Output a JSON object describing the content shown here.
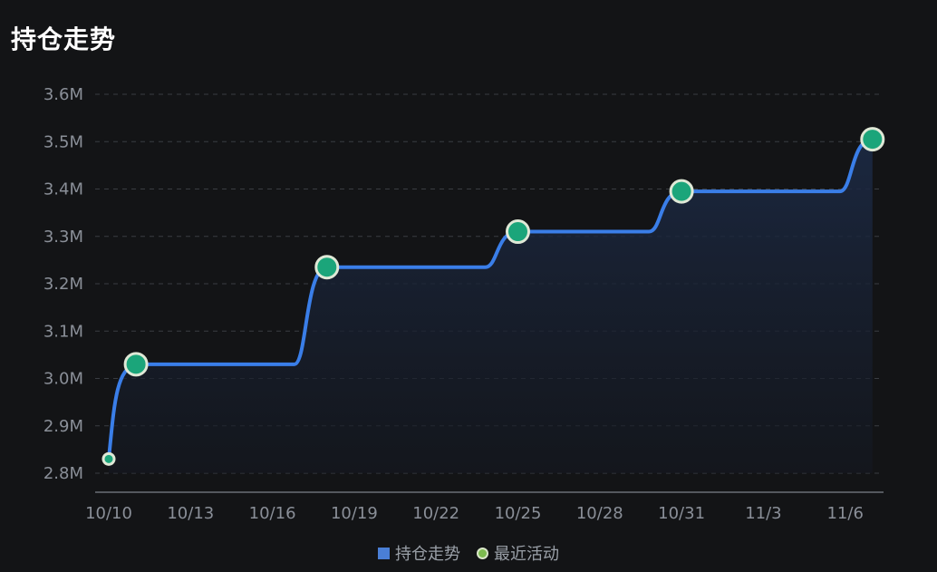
{
  "colors": {
    "background": "#131416",
    "line": "#3a7ee8",
    "area_top": "#1c2a45",
    "area_bottom": "#141821",
    "dot_fill": "#1ba57a",
    "dot_stroke": "#dfe8d6",
    "grid": "#3a3d42",
    "axis": "#6b6f76",
    "legend_dot": "#7dbb4f"
  },
  "chart_data": {
    "type": "line",
    "title": "持仓走势",
    "x_ticks": [
      "10/10",
      "10/13",
      "10/16",
      "10/19",
      "10/22",
      "10/25",
      "10/28",
      "10/31",
      "11/3",
      "11/6"
    ],
    "y_ticks": [
      "2.8M",
      "2.9M",
      "3.0M",
      "3.1M",
      "3.2M",
      "3.3M",
      "3.4M",
      "3.5M",
      "3.6M"
    ],
    "ylim": [
      2.8,
      3.6
    ],
    "y_unit": "M",
    "grid": true,
    "legend_position": "bottom",
    "series": [
      {
        "name": "持仓走势",
        "kind": "step-line",
        "points": [
          {
            "date": "10/10",
            "value": 2.83
          },
          {
            "date": "10/11",
            "value": 3.03
          },
          {
            "date": "10/18",
            "value": 3.235
          },
          {
            "date": "10/25",
            "value": 3.31
          },
          {
            "date": "10/31",
            "value": 3.395
          },
          {
            "date": "11/7",
            "value": 3.505
          }
        ]
      },
      {
        "name": "最近活动",
        "kind": "scatter",
        "points": [
          {
            "date": "10/10",
            "value": 2.83
          },
          {
            "date": "10/11",
            "value": 3.03
          },
          {
            "date": "10/18",
            "value": 3.235
          },
          {
            "date": "10/25",
            "value": 3.31
          },
          {
            "date": "10/31",
            "value": 3.395
          },
          {
            "date": "11/7",
            "value": 3.505
          }
        ]
      }
    ]
  },
  "legend": {
    "items": [
      {
        "label": "持仓走势",
        "color": "#4a7fd6",
        "shape": "square"
      },
      {
        "label": "最近活动",
        "color": "#7dbb4f",
        "shape": "circle"
      }
    ]
  }
}
